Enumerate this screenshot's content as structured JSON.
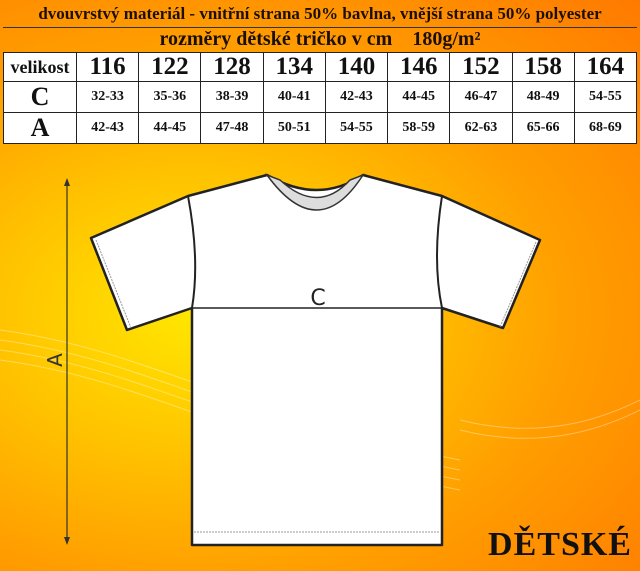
{
  "header": {
    "material": "dvouvrstvý materiál - vnitřní strana 50% bavlna, vnější strana 50% polyester",
    "title": "rozměry dětské tričko v cm    180g/m²"
  },
  "table": {
    "size_label": "velikost",
    "sizes": [
      "116",
      "122",
      "128",
      "134",
      "140",
      "146",
      "152",
      "158",
      "164"
    ],
    "rows": [
      {
        "label": "C",
        "values": [
          "32-33",
          "35-36",
          "38-39",
          "40-41",
          "42-43",
          "44-45",
          "46-47",
          "48-49",
          "54-55"
        ]
      },
      {
        "label": "A",
        "values": [
          "42-43",
          "44-45",
          "47-48",
          "50-51",
          "54-55",
          "58-59",
          "62-63",
          "65-66",
          "68-69"
        ]
      }
    ]
  },
  "diagram": {
    "width_label": "C",
    "length_label": "A"
  },
  "brand": "DĚTSKÉ",
  "colors": {
    "background": "#ff9e00",
    "table": "#ffffff"
  }
}
